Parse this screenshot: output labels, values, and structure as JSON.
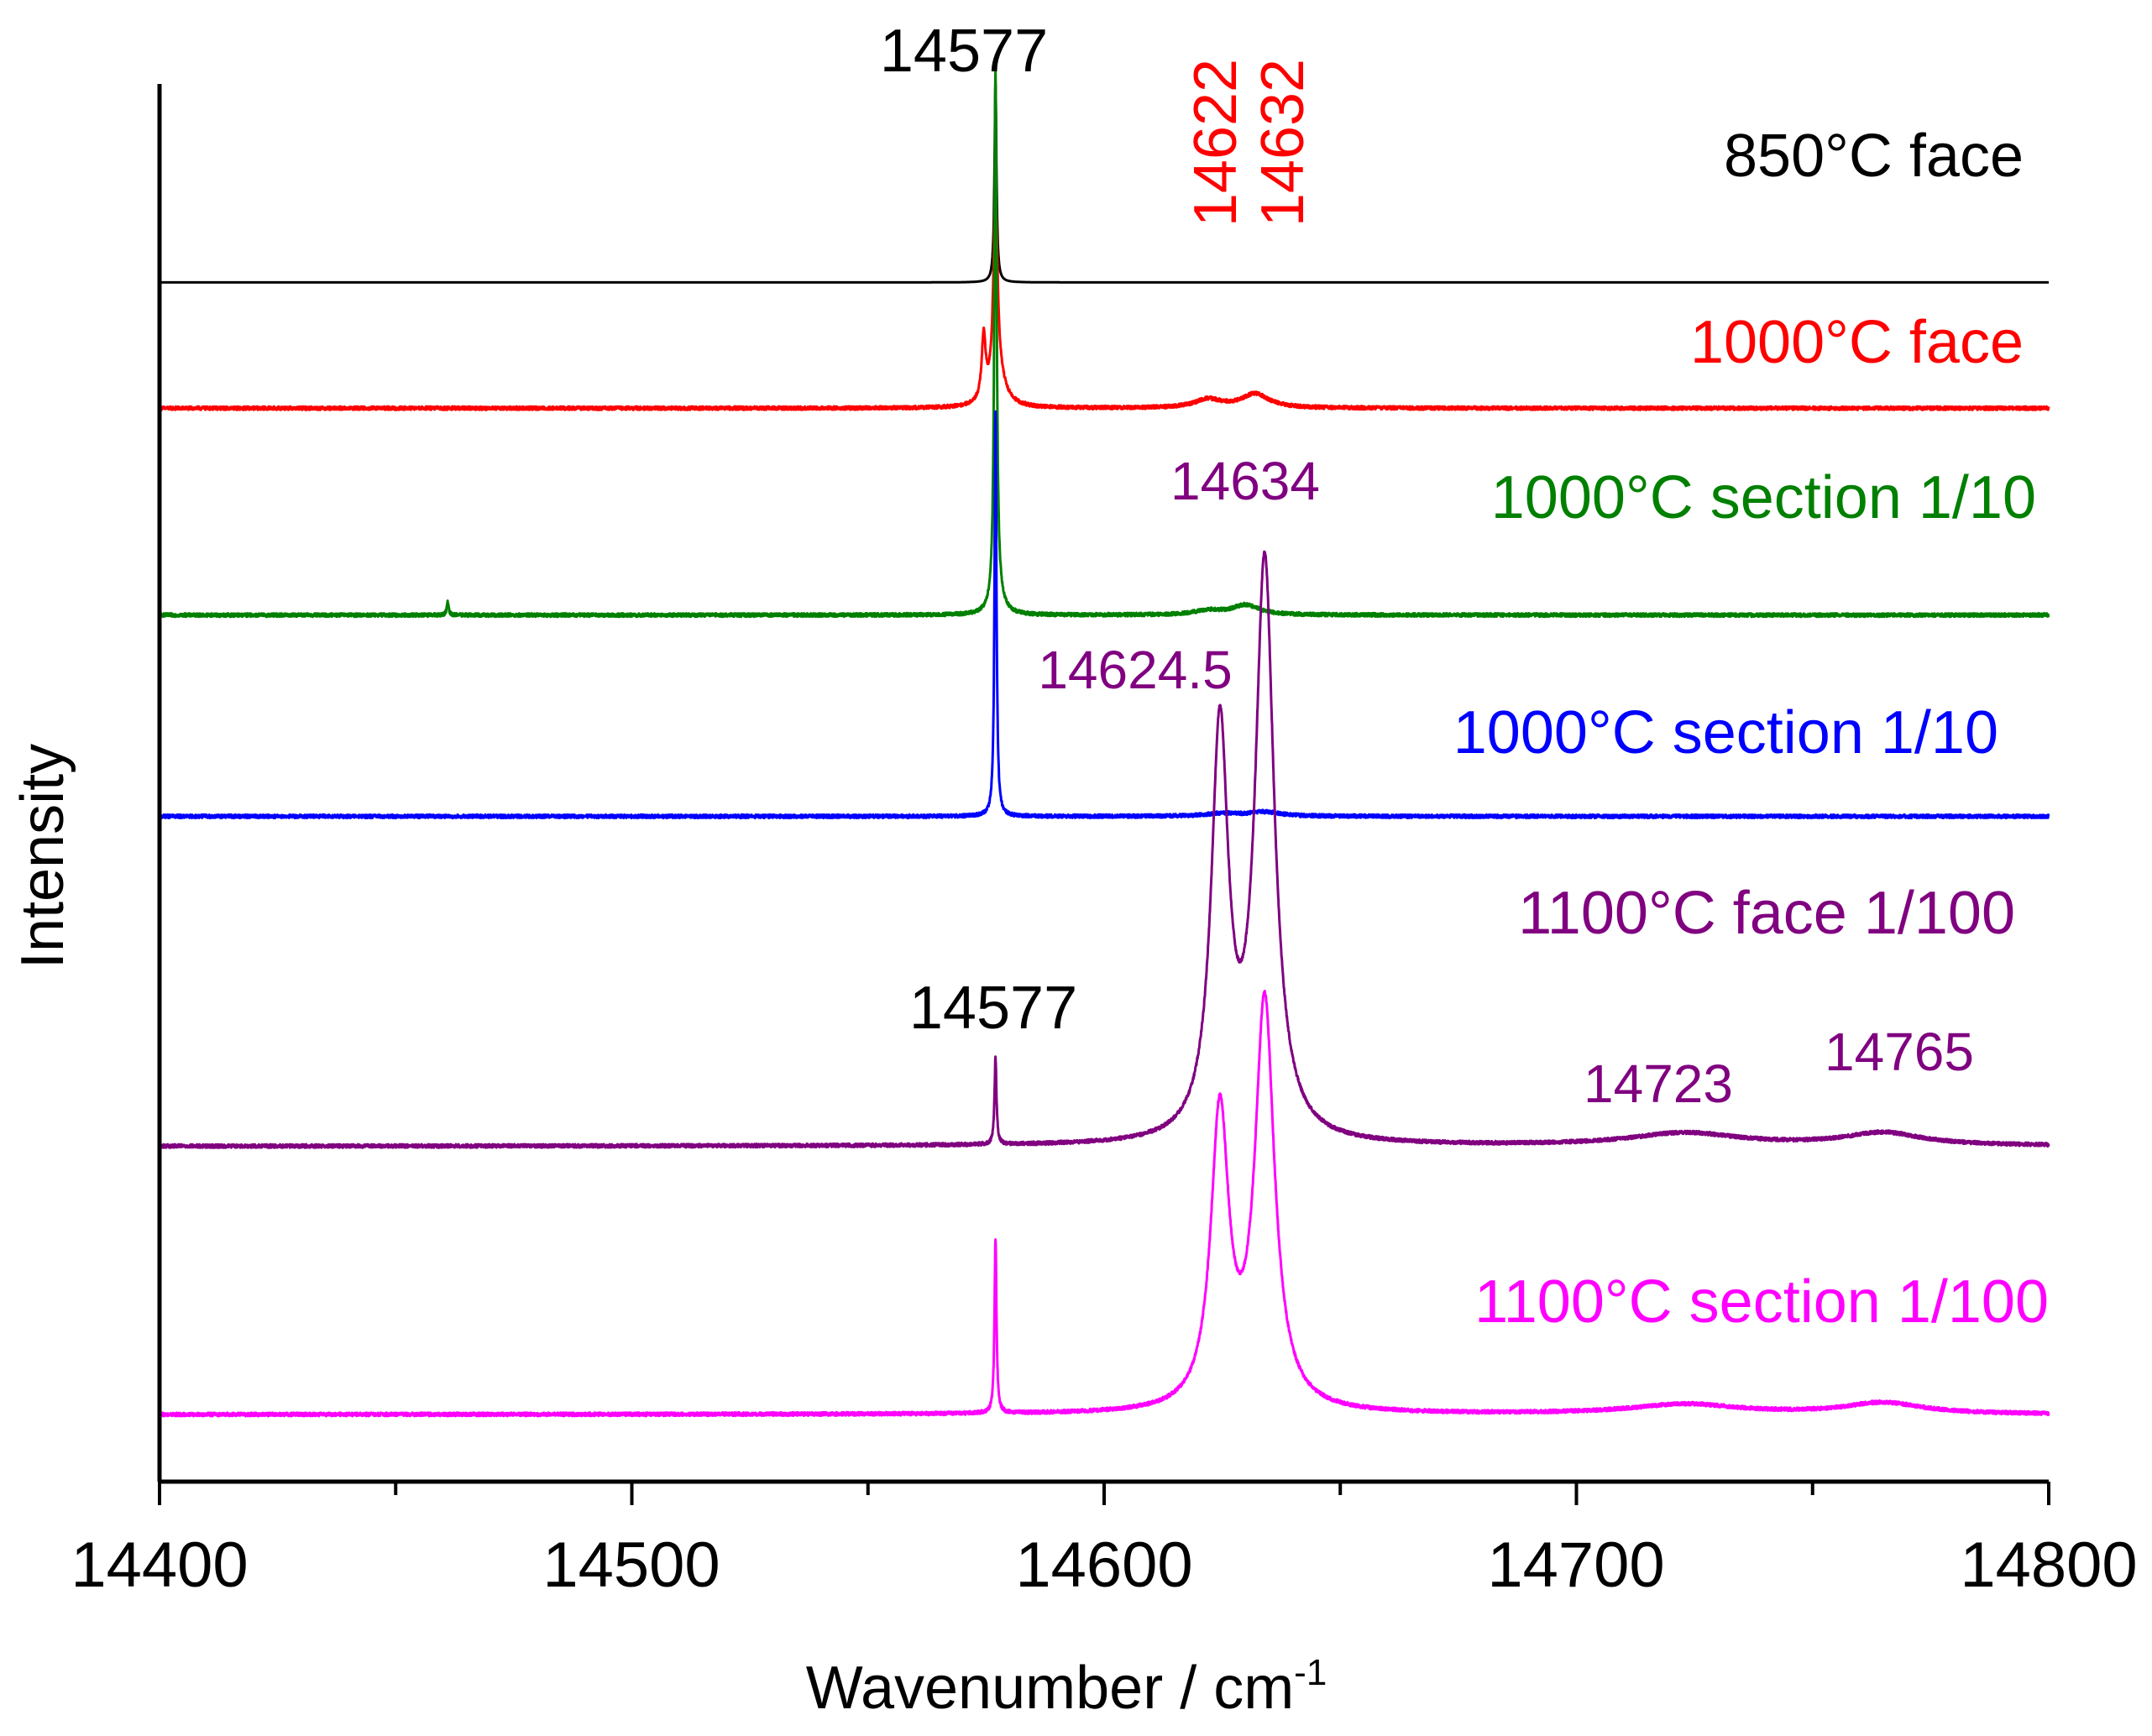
{
  "chart_data": {
    "type": "line",
    "xlabel": "Wavenumber / cm",
    "xlabel_sup": "-1",
    "ylabel": "Intensity",
    "xlim": [
      14400,
      14800
    ],
    "ylim": [
      0,
      1
    ],
    "xticks": [
      "14400",
      "14500",
      "14600",
      "14700",
      "14800"
    ],
    "grid": false,
    "colors": {
      "850": "#000000",
      "1000face": "#ff0000",
      "1000sec_green": "#008000",
      "1000sec_blue": "#0000ff",
      "1100face": "#800080",
      "1100sec": "#ff00ff"
    },
    "series": [
      {
        "name": "850°C face",
        "color": "#000000",
        "baseline": 0.858,
        "peaks": [
          {
            "x": 14577,
            "h": 0.142,
            "w": 0.25
          }
        ]
      },
      {
        "name": "1000°C face",
        "color": "#ff0000",
        "baseline": 0.768,
        "peaks": [
          {
            "x": 14574.5,
            "h": 0.045,
            "w": 0.5
          },
          {
            "x": 14577,
            "h": 0.14,
            "w": 0.5
          },
          {
            "x": 14577.5,
            "h": 0.02,
            "w": 2.0
          },
          {
            "x": 14622,
            "h": 0.006,
            "w": 3.5
          },
          {
            "x": 14632,
            "h": 0.01,
            "w": 3.5
          }
        ]
      },
      {
        "name": "1000°C section 1/10",
        "color": "#008000",
        "baseline": 0.62,
        "peaks": [
          {
            "x": 14461,
            "h": 0.009,
            "w": 0.25
          },
          {
            "x": 14577,
            "h": 0.38,
            "w": 0.3
          },
          {
            "x": 14577.5,
            "h": 0.01,
            "w": 1.5
          },
          {
            "x": 14622,
            "h": 0.003,
            "w": 3.5
          },
          {
            "x": 14630,
            "h": 0.007,
            "w": 3.5
          }
        ]
      },
      {
        "name": "1000°C section 1/10",
        "color": "#0000ff",
        "baseline": 0.476,
        "peaks": [
          {
            "x": 14577,
            "h": 0.29,
            "w": 0.25
          },
          {
            "x": 14625,
            "h": 0.002,
            "w": 4.0
          },
          {
            "x": 14634,
            "h": 0.003,
            "w": 4.0
          }
        ]
      },
      {
        "name": "1100°C face 1/100",
        "color": "#800080",
        "baseline": 0.24,
        "peaks": [
          {
            "x": 14577,
            "h": 0.062,
            "w": 0.25
          },
          {
            "x": 14624.5,
            "h": 0.29,
            "w": 2.2
          },
          {
            "x": 14634,
            "h": 0.41,
            "w": 2.4
          },
          {
            "x": 14723,
            "h": 0.009,
            "w": 14
          },
          {
            "x": 14765,
            "h": 0.009,
            "w": 10
          }
        ]
      },
      {
        "name": "1100°C section 1/100",
        "color": "#ff00ff",
        "baseline": 0.048,
        "peaks": [
          {
            "x": 14577,
            "h": 0.125,
            "w": 0.25
          },
          {
            "x": 14624.5,
            "h": 0.21,
            "w": 2.3
          },
          {
            "x": 14634,
            "h": 0.29,
            "w": 2.5
          },
          {
            "x": 14723,
            "h": 0.007,
            "w": 14
          },
          {
            "x": 14765,
            "h": 0.008,
            "w": 10
          }
        ]
      }
    ],
    "annotations": [
      {
        "text": "14577",
        "color": "#000000"
      },
      {
        "text": "14622",
        "color": "#ff0000"
      },
      {
        "text": "14632",
        "color": "#ff0000"
      },
      {
        "text": "14634",
        "color": "#800080"
      },
      {
        "text": "14624.5",
        "color": "#800080"
      },
      {
        "text": "14577",
        "color": "#000000"
      },
      {
        "text": "14723",
        "color": "#800080"
      },
      {
        "text": "14765",
        "color": "#800080"
      }
    ]
  }
}
